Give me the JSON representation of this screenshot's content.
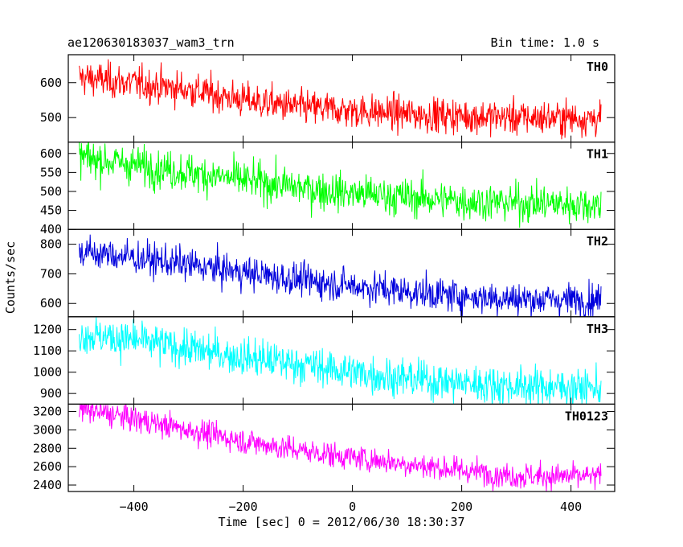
{
  "header": {
    "title": "ae120630183037_wam3_trn",
    "bin_time": "Bin time: 1.0 s"
  },
  "axes": {
    "ylabel": "Counts/sec",
    "xlabel": "Time [sec] 0 = 2012/06/30 18:30:37",
    "xlim": [
      -520,
      480
    ],
    "xticks": [
      -400,
      -200,
      0,
      200,
      400
    ],
    "xtick_labels": [
      "−400",
      "−200",
      "0",
      "200",
      "400"
    ]
  },
  "chart_data": {
    "type": "line",
    "title": "ae120630183037_wam3_trn",
    "xlabel": "Time [sec] 0 = 2012/06/30 18:30:37",
    "ylabel": "Counts/sec",
    "x_range": [
      -500,
      455
    ],
    "bin_time_s": 1.0,
    "series": [
      {
        "name": "TH0",
        "color": "#ff0000",
        "ylim": [
          430,
          680
        ],
        "yticks": [
          500,
          600
        ],
        "x_knots": [
          -500,
          -400,
          -300,
          -200,
          -100,
          0,
          100,
          200,
          300,
          455
        ],
        "y_knots": [
          615,
          598,
          580,
          550,
          530,
          520,
          510,
          505,
          500,
          498
        ],
        "noise": 25
      },
      {
        "name": "TH1",
        "color": "#00ff00",
        "ylim": [
          400,
          630
        ],
        "yticks": [
          400,
          450,
          500,
          550,
          600
        ],
        "x_knots": [
          -500,
          -400,
          -300,
          -200,
          -100,
          0,
          100,
          200,
          300,
          455
        ],
        "y_knots": [
          590,
          570,
          550,
          530,
          510,
          495,
          485,
          475,
          470,
          465
        ],
        "noise": 25
      },
      {
        "name": "TH2",
        "color": "#0000dd",
        "ylim": [
          555,
          850
        ],
        "yticks": [
          600,
          700,
          800
        ],
        "x_knots": [
          -500,
          -400,
          -300,
          -200,
          -100,
          0,
          100,
          200,
          300,
          455
        ],
        "y_knots": [
          775,
          755,
          730,
          705,
          680,
          660,
          640,
          625,
          615,
          612
        ],
        "noise": 28
      },
      {
        "name": "TH3",
        "color": "#00ffff",
        "ylim": [
          850,
          1260
        ],
        "yticks": [
          900,
          1000,
          1100,
          1200
        ],
        "x_knots": [
          -500,
          -400,
          -300,
          -200,
          -100,
          0,
          100,
          200,
          300,
          455
        ],
        "y_knots": [
          1180,
          1150,
          1110,
          1070,
          1040,
          1000,
          970,
          950,
          935,
          925
        ],
        "noise": 45
      },
      {
        "name": "TH0123",
        "color": "#ff00ff",
        "ylim": [
          2330,
          3280
        ],
        "yticks": [
          2400,
          2600,
          2800,
          3000,
          3200
        ],
        "x_knots": [
          -500,
          -400,
          -300,
          -200,
          -100,
          0,
          100,
          200,
          300,
          455
        ],
        "y_knots": [
          3230,
          3120,
          3000,
          2880,
          2780,
          2700,
          2630,
          2560,
          2500,
          2490
        ],
        "noise": 70
      }
    ]
  }
}
